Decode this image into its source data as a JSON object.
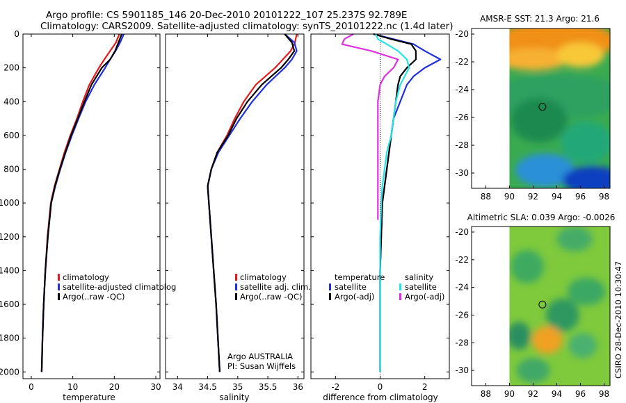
{
  "header": {
    "line1": "Argo profile: CS 5901185_146 20-Dec-2010 20101222_107 25.237S 92.789E",
    "line2": "Climatology: CARS2009. Satellite-adjusted climatology: synTS_20101222.nc (1.4d later)"
  },
  "side_label": "CSIRO 28-Dec-2010 10:30:47",
  "colors": {
    "red": "#e41a1c",
    "blue": "#1f2ee0",
    "black": "#000000",
    "cyan": "#22e5e5",
    "magenta": "#e22ee2"
  },
  "chart_data": [
    {
      "type": "line",
      "xlabel": "temperature",
      "xlim": [
        -2,
        31
      ],
      "ylim": [
        2040,
        0
      ],
      "xticks": [
        0,
        10,
        20,
        30
      ],
      "yticks": [
        0,
        200,
        400,
        600,
        800,
        1000,
        1200,
        1400,
        1600,
        1800,
        2000
      ],
      "legend": [
        "climatology",
        "satellite-adjusted climatology",
        "Argo(..raw -QC)"
      ],
      "legend_visible": [
        "climatology",
        "satellite-adjusted climatolog",
        "Argo(..raw -QC)"
      ],
      "series": [
        {
          "name": "climatology",
          "color": "red",
          "depth": [
            0,
            50,
            100,
            150,
            200,
            300,
            400,
            500,
            600,
            700,
            800,
            900,
            1000,
            1200,
            1400,
            1600,
            1800,
            2000
          ],
          "values": [
            21.2,
            20.4,
            19.0,
            17.6,
            16.3,
            14.0,
            12.4,
            11.0,
            9.4,
            8.0,
            6.8,
            5.6,
            4.7,
            3.9,
            3.4,
            3.0,
            2.7,
            2.5
          ]
        },
        {
          "name": "satellite-adjusted climatology",
          "color": "blue",
          "depth": [
            0,
            50,
            100,
            150,
            200,
            300,
            400,
            500,
            600,
            700,
            800,
            900,
            1000,
            1200,
            1400,
            1600,
            1800,
            2000
          ],
          "values": [
            22.3,
            21.4,
            20.3,
            19.0,
            17.8,
            15.2,
            13.1,
            11.4,
            9.8,
            8.3,
            7.0,
            5.8,
            4.8,
            4.0,
            3.4,
            3.0,
            2.7,
            2.5
          ]
        },
        {
          "name": "Argo(..raw -QC)",
          "color": "black",
          "depth": [
            0,
            50,
            100,
            150,
            200,
            300,
            400,
            500,
            600,
            700,
            800,
            900,
            1000,
            1200,
            1400,
            1600,
            1800,
            2000
          ],
          "values": [
            21.8,
            21.0,
            20.2,
            19.0,
            17.0,
            14.5,
            12.8,
            11.2,
            9.6,
            8.2,
            6.9,
            5.7,
            4.8,
            4.0,
            3.4,
            3.0,
            2.7,
            2.5
          ]
        }
      ]
    },
    {
      "type": "line",
      "xlabel": "salinity",
      "xlim": [
        33.8,
        36.1
      ],
      "ylim": [
        2040,
        0
      ],
      "xticks": [
        34,
        34.5,
        35,
        35.5,
        36
      ],
      "legend": [
        "climatology",
        "satellite adj. clim.",
        "Argo(..raw -QC)"
      ],
      "annotation": [
        "Argo AUSTRALIA",
        "PI: Susan Wijffels"
      ],
      "series": [
        {
          "name": "climatology",
          "color": "red",
          "depth": [
            0,
            50,
            100,
            150,
            200,
            300,
            400,
            500,
            600,
            700,
            800,
            900,
            1000,
            1200,
            1400,
            1600,
            1800,
            2000
          ],
          "values": [
            35.98,
            35.95,
            35.88,
            35.75,
            35.62,
            35.3,
            35.1,
            34.95,
            34.82,
            34.66,
            34.56,
            34.5,
            34.52,
            34.56,
            34.6,
            34.64,
            34.67,
            34.7
          ]
        },
        {
          "name": "satellite adj. clim.",
          "color": "blue",
          "depth": [
            0,
            50,
            100,
            150,
            200,
            300,
            400,
            500,
            600,
            700,
            800,
            900,
            1000,
            1200,
            1400,
            1600,
            1800,
            2000
          ],
          "values": [
            35.78,
            35.94,
            35.98,
            35.9,
            35.78,
            35.48,
            35.24,
            35.04,
            34.86,
            34.68,
            34.56,
            34.5,
            34.52,
            34.56,
            34.6,
            34.64,
            34.67,
            34.7
          ]
        },
        {
          "name": "Argo(..raw -QC)",
          "color": "black",
          "depth": [
            0,
            50,
            100,
            150,
            200,
            300,
            400,
            500,
            600,
            700,
            800,
            900,
            1000,
            1200,
            1400,
            1600,
            1800,
            2000
          ],
          "values": [
            35.78,
            35.9,
            35.94,
            35.84,
            35.72,
            35.4,
            35.16,
            34.98,
            34.84,
            34.66,
            34.56,
            34.5,
            34.52,
            34.56,
            34.6,
            34.64,
            34.67,
            34.7
          ]
        }
      ]
    },
    {
      "type": "line",
      "xlabel": "difference from climatology",
      "xlim": [
        -3.1,
        3.1
      ],
      "ylim": [
        2040,
        0
      ],
      "xticks": [
        -2,
        0,
        2
      ],
      "legend_groups": [
        {
          "title": "temperature",
          "items": [
            "satellite",
            "Argo(-adj)"
          ]
        },
        {
          "title": "salinity",
          "items": [
            "satellite",
            "Argo(-adj)"
          ]
        }
      ],
      "series": [
        {
          "name": "temperature satellite",
          "color": "blue",
          "depth": [
            0,
            30,
            60,
            100,
            150,
            200,
            250,
            300,
            400,
            500,
            600,
            700,
            800,
            900,
            1000,
            1200,
            1400,
            1600,
            1800,
            2000
          ],
          "values": [
            -0.3,
            0.6,
            1.5,
            2.0,
            2.7,
            2.0,
            1.5,
            1.2,
            0.9,
            0.6,
            0.5,
            0.4,
            0.3,
            0.2,
            0.1,
            0.05,
            0,
            0,
            0,
            0
          ]
        },
        {
          "name": "temperature Argo(-adj)",
          "color": "black",
          "depth": [
            0,
            30,
            60,
            100,
            150,
            200,
            250,
            300,
            400,
            500,
            600,
            700,
            800,
            900,
            1000,
            1200,
            1400,
            1600,
            1800,
            2000
          ],
          "values": [
            -0.3,
            0.5,
            1.4,
            1.6,
            1.6,
            1.2,
            0.9,
            0.8,
            0.7,
            0.6,
            0.5,
            0.4,
            0.3,
            0.2,
            0.1,
            0.05,
            0,
            0,
            0,
            0
          ]
        },
        {
          "name": "salinity satellite",
          "color": "cyan",
          "depth": [
            0,
            30,
            60,
            100,
            150,
            200,
            250,
            300,
            400,
            500,
            600,
            700,
            800,
            900,
            1000,
            1200,
            1400,
            1600,
            1800,
            2000
          ],
          "values": [
            -0.2,
            -0.1,
            0.3,
            0.8,
            1.2,
            1.3,
            1.1,
            0.9,
            0.7,
            0.6,
            0.5,
            0.3,
            0.2,
            0.1,
            0.05,
            0,
            0,
            0,
            0,
            0
          ]
        },
        {
          "name": "salinity Argo(-adj)",
          "color": "magenta",
          "depth": [
            0,
            30,
            60,
            100,
            150,
            200,
            250,
            300,
            400,
            500,
            600,
            700,
            800,
            900,
            1000,
            1100
          ],
          "values": [
            -1.2,
            -1.6,
            -1.7,
            -0.4,
            0.8,
            0.6,
            0.2,
            0.0,
            -0.1,
            -0.1,
            -0.1,
            -0.1,
            -0.1,
            -0.1,
            -0.1,
            -0.1
          ]
        }
      ]
    },
    {
      "type": "heatmap",
      "title": "AMSR-E SST: 21.3 Argo: 21.6",
      "xlim": [
        86.8,
        98.5
      ],
      "ylim": [
        -31.1,
        -19.6
      ],
      "xticks": [
        88,
        90,
        92,
        94,
        96,
        98
      ],
      "yticks": [
        -20,
        -22,
        -24,
        -26,
        -28,
        -30
      ],
      "data_x_start": 90,
      "marker": {
        "lon": 92.789,
        "lat": -25.237
      },
      "blobs": [
        {
          "lon": 94,
          "lat": -20.5,
          "rx": 5,
          "ry": 1.5,
          "color": "#f09018"
        },
        {
          "lon": 92,
          "lat": -21.8,
          "rx": 3,
          "ry": 0.8,
          "color": "#f7b030"
        },
        {
          "lon": 96,
          "lat": -21.5,
          "rx": 2,
          "ry": 0.9,
          "color": "#f8c838"
        },
        {
          "lon": 94,
          "lat": -24.5,
          "rx": 6,
          "ry": 1.6,
          "color": "#2ea060"
        },
        {
          "lon": 92.5,
          "lat": -26.2,
          "rx": 2.4,
          "ry": 1.6,
          "color": "#1e8a50"
        },
        {
          "lon": 96.5,
          "lat": -27.8,
          "rx": 2.2,
          "ry": 1.5,
          "color": "#20a878"
        },
        {
          "lon": 93,
          "lat": -29.8,
          "rx": 2.5,
          "ry": 1.2,
          "color": "#2a90d8"
        },
        {
          "lon": 97,
          "lat": -30.5,
          "rx": 2.5,
          "ry": 1.0,
          "color": "#1040c0"
        }
      ]
    },
    {
      "type": "heatmap",
      "title": "Altimetric SLA: 0.039 Argo: -0.0026",
      "xlim": [
        86.8,
        98.5
      ],
      "ylim": [
        -31.1,
        -19.6
      ],
      "xticks": [
        88,
        90,
        92,
        94,
        96,
        98
      ],
      "yticks": [
        -20,
        -22,
        -24,
        -26,
        -28,
        -30
      ],
      "data_x_start": 90,
      "marker": {
        "lon": 92.789,
        "lat": -25.237
      },
      "blobs": [
        {
          "lon": 91.5,
          "lat": -22.5,
          "rx": 1.4,
          "ry": 1.2,
          "color": "#3caa60"
        },
        {
          "lon": 95.5,
          "lat": -20.5,
          "rx": 1.5,
          "ry": 0.9,
          "color": "#44ac68"
        },
        {
          "lon": 96.5,
          "lat": -24.3,
          "rx": 1.6,
          "ry": 1.0,
          "color": "#3aa864"
        },
        {
          "lon": 94.5,
          "lat": -26.0,
          "rx": 1.4,
          "ry": 1.2,
          "color": "#2f9860"
        },
        {
          "lon": 90.8,
          "lat": -27.5,
          "rx": 1.0,
          "ry": 1.0,
          "color": "#2a8f60"
        },
        {
          "lon": 93.2,
          "lat": -27.8,
          "rx": 1.3,
          "ry": 1.0,
          "color": "#f0a020"
        },
        {
          "lon": 96.2,
          "lat": -28.2,
          "rx": 1.2,
          "ry": 0.9,
          "color": "#48b070"
        },
        {
          "lon": 92.0,
          "lat": -30.0,
          "rx": 1.4,
          "ry": 0.9,
          "color": "#40a868"
        }
      ]
    }
  ]
}
